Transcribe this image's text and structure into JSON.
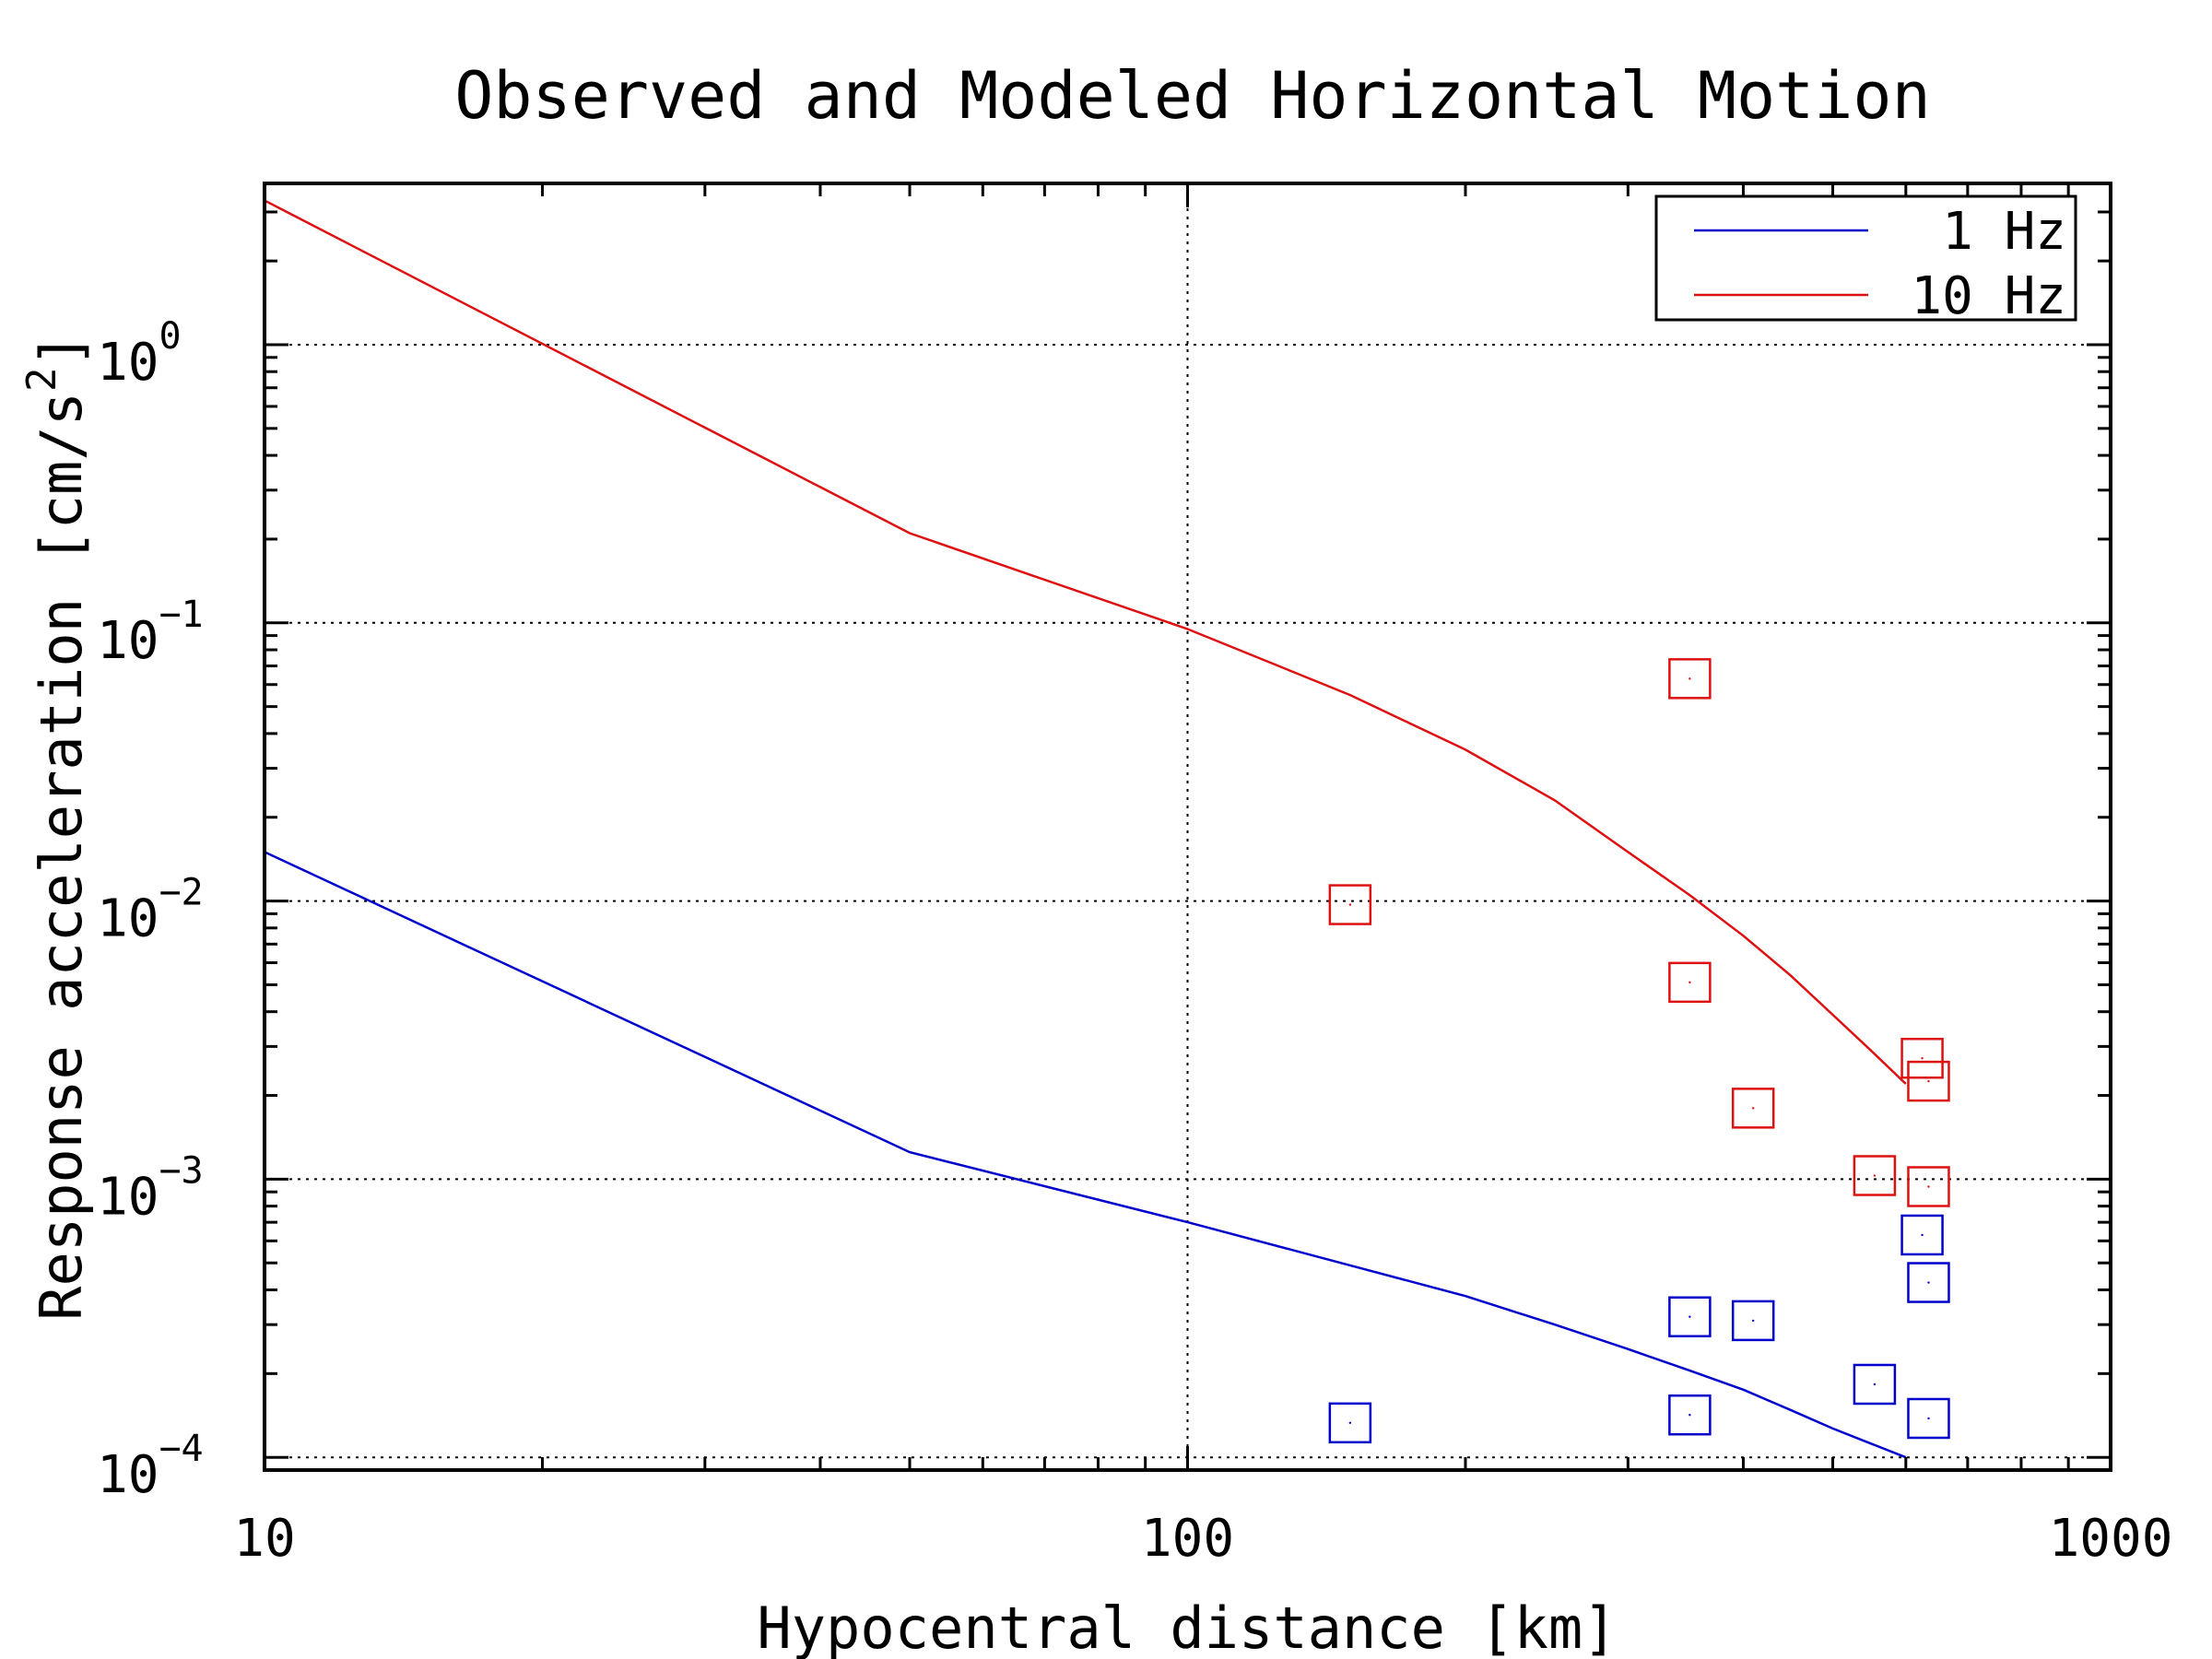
{
  "chart_data": {
    "type": "scatter",
    "title": "Observed and Modeled Horizontal Motion",
    "xlabel": "Hypocentral distance [km]",
    "ylabel": "Response acceleration [cm/s2]",
    "xscale": "log",
    "yscale": "log",
    "xlim": [
      10,
      1000
    ],
    "ylim": [
      9e-05,
      3.8
    ],
    "x_ticks": [
      {
        "value": 10,
        "label": "10"
      },
      {
        "value": 100,
        "label": "100"
      },
      {
        "value": 1000,
        "label": "1000"
      }
    ],
    "y_ticks": [
      {
        "value": 0.0001,
        "base": "10",
        "exp": "−4"
      },
      {
        "value": 0.001,
        "base": "10",
        "exp": "−3"
      },
      {
        "value": 0.01,
        "base": "10",
        "exp": "−2"
      },
      {
        "value": 0.1,
        "base": "10",
        "exp": "−1"
      },
      {
        "value": 1,
        "base": "10",
        "exp": "0"
      }
    ],
    "grid": true,
    "legend_position": "top-right",
    "series": [
      {
        "name": "1 Hz",
        "color": "#0000cc",
        "kind": "line",
        "x": [
          10,
          50,
          100,
          150,
          200,
          250,
          300,
          350,
          400,
          450,
          500,
          550,
          600
        ],
        "y": [
          0.015,
          0.00125,
          0.0007,
          0.00049,
          0.00038,
          0.0003,
          0.000245,
          0.000205,
          0.000175,
          0.000148,
          0.000127,
          0.000112,
          0.0001
        ]
      },
      {
        "name": "10 Hz",
        "color": "#dd1111",
        "kind": "line",
        "x": [
          10,
          50,
          100,
          150,
          200,
          250,
          300,
          350,
          400,
          450,
          500,
          550,
          600
        ],
        "y": [
          3.3,
          0.21,
          0.095,
          0.055,
          0.035,
          0.023,
          0.015,
          0.0105,
          0.0075,
          0.0054,
          0.0039,
          0.0029,
          0.0022
        ]
      }
    ],
    "observed": [
      {
        "color": "#0000cc",
        "x": [
          150,
          350,
          350,
          410,
          555,
          625,
          635,
          635
        ],
        "y": [
          0.000133,
          0.000142,
          0.00032,
          0.00031,
          0.000183,
          0.00063,
          0.000425,
          0.000138
        ]
      },
      {
        "color": "#dd1111",
        "x": [
          150,
          350,
          350,
          410,
          555,
          625,
          635,
          635
        ],
        "y": [
          0.0097,
          0.063,
          0.0051,
          0.0018,
          0.00103,
          0.00272,
          0.00225,
          0.00094
        ]
      }
    ]
  }
}
